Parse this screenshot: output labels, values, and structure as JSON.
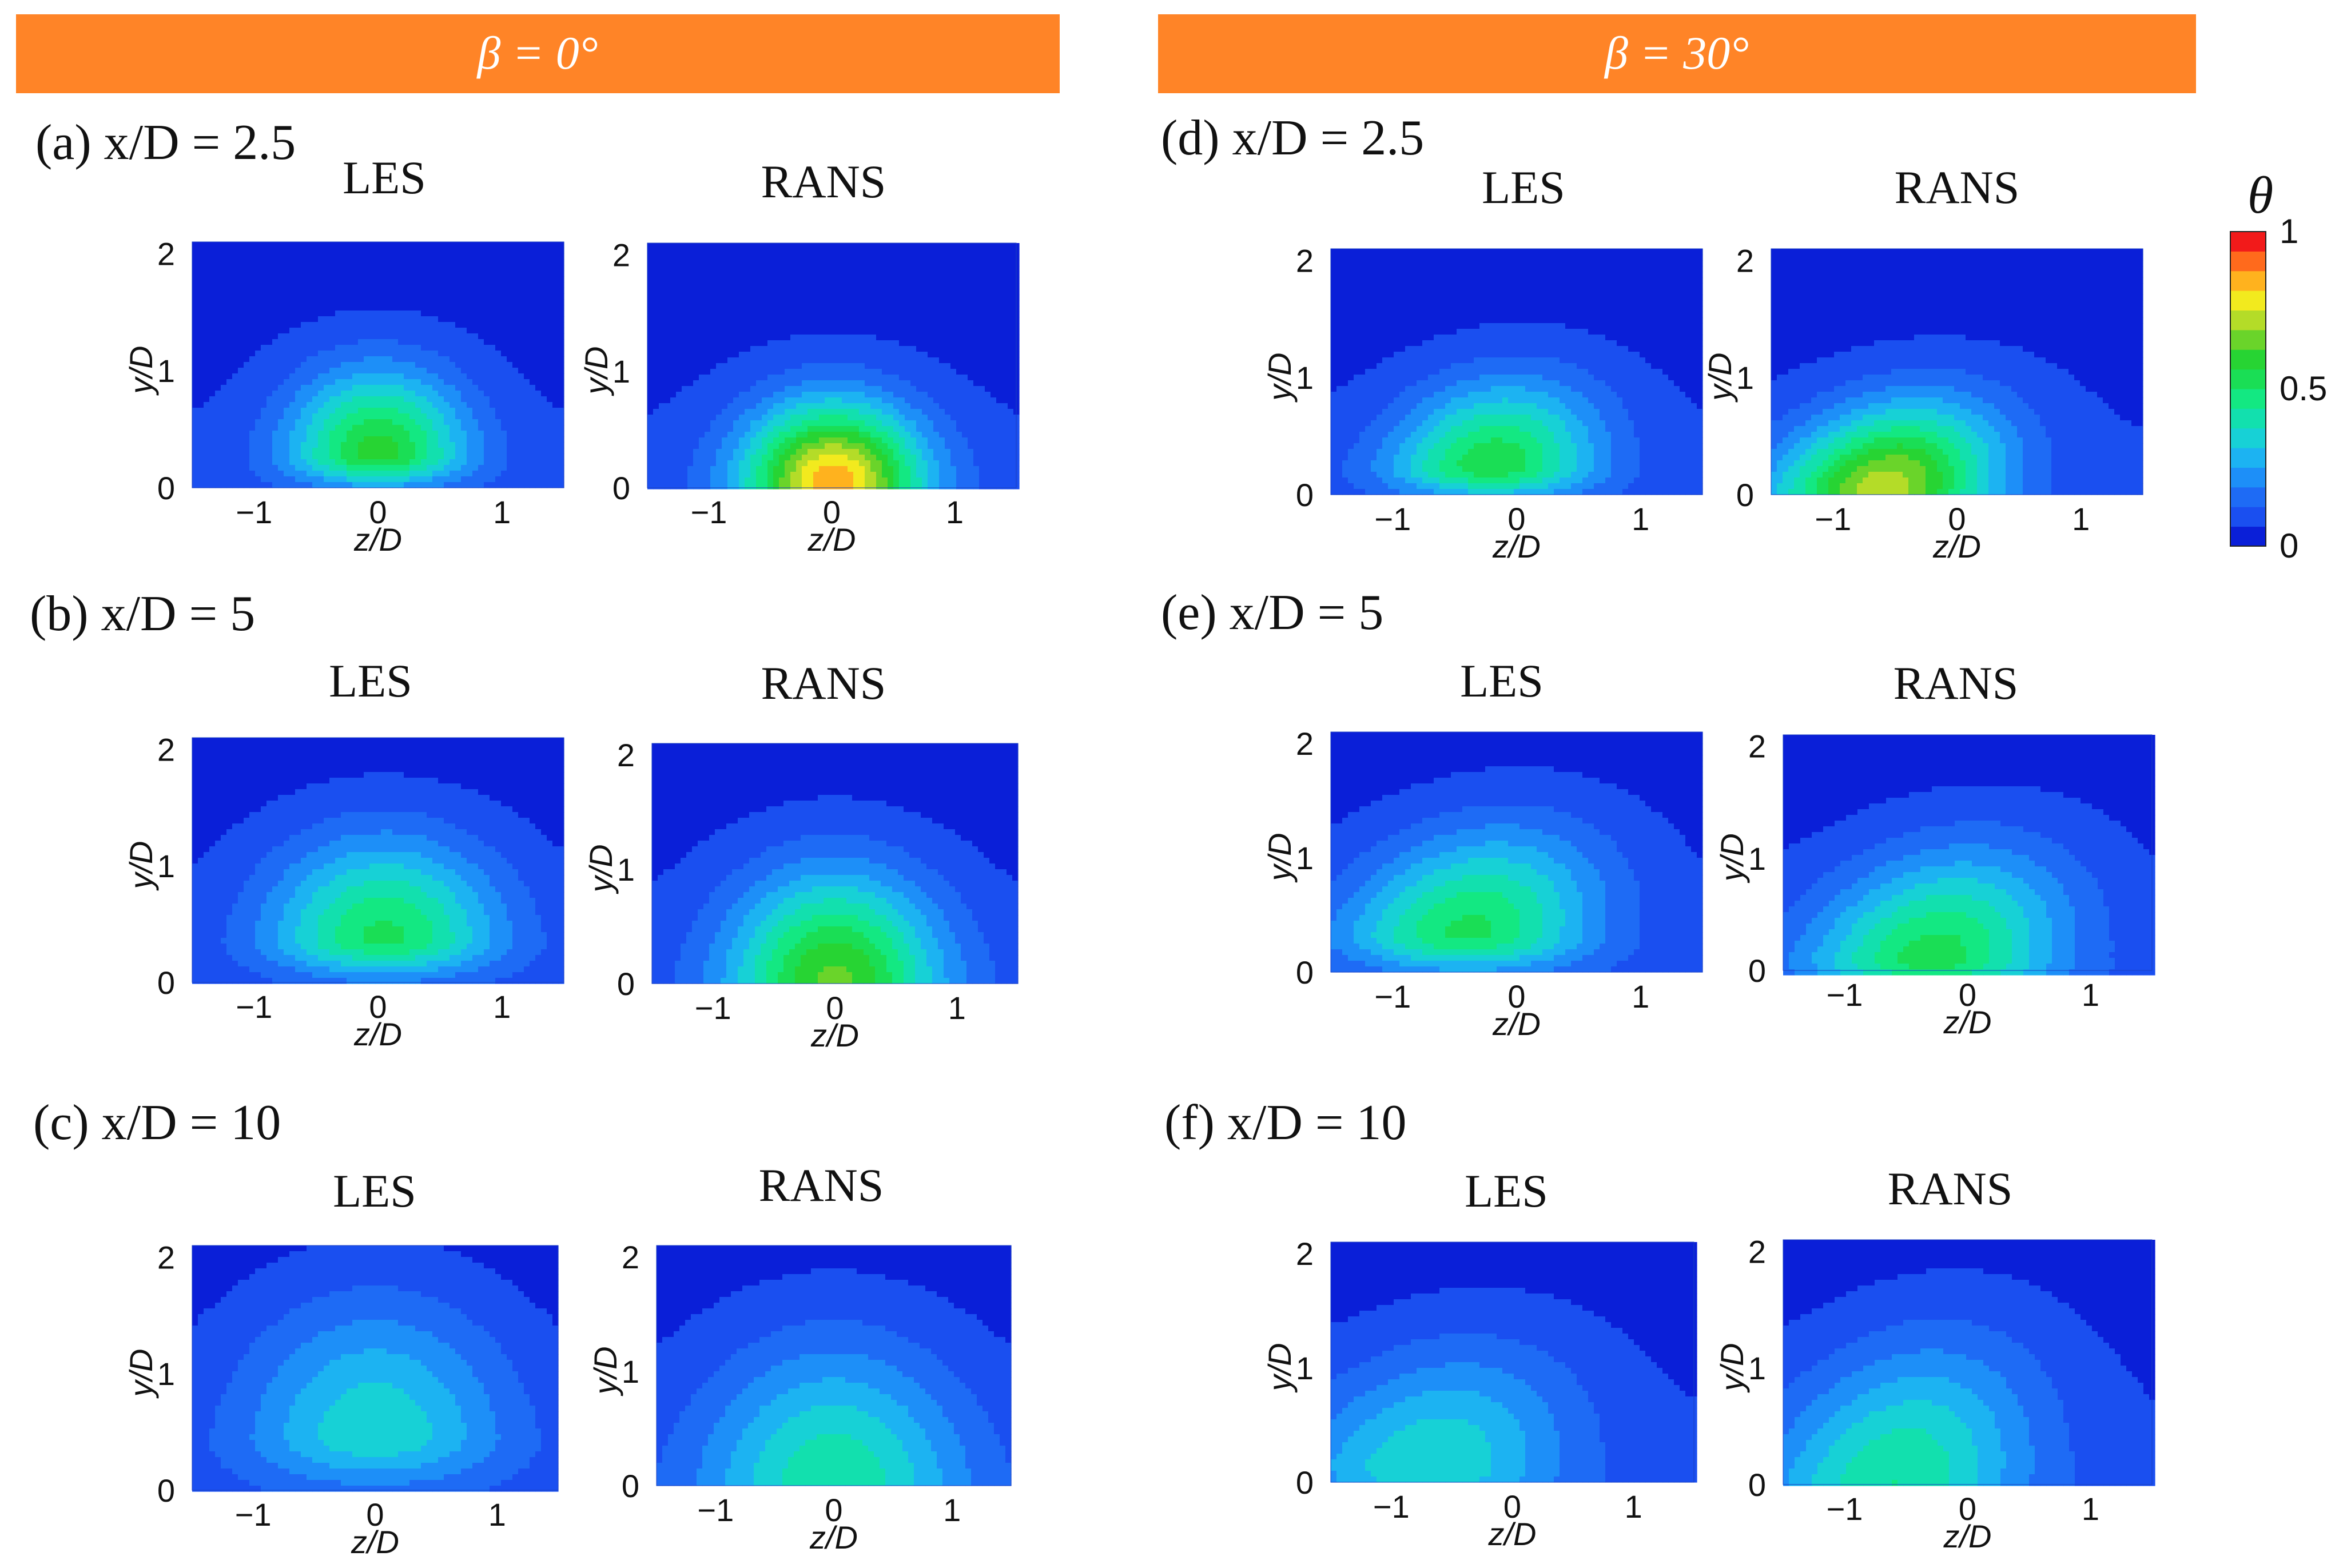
{
  "figure": {
    "banner_left": "β = 0°",
    "banner_right": "β = 30°",
    "colors": {
      "banner": "#ff8427",
      "background_blue": "#1f4ee8",
      "contour_line": "#0a0a0a"
    }
  },
  "chart_data": {
    "type": "contour",
    "variable": "θ",
    "colorbar": {
      "title": "θ",
      "ticks": [
        "1",
        "0.5",
        "0"
      ],
      "range": [
        0,
        1
      ],
      "levels": 16,
      "colors": [
        "#0a1fd8",
        "#1a4ff0",
        "#1e6bf5",
        "#1d8ff8",
        "#1cb3f2",
        "#17d1d6",
        "#12e0ae",
        "#13e882",
        "#1ade55",
        "#27d433",
        "#6ad42a",
        "#b4dc28",
        "#f2ea1e",
        "#ffb21e",
        "#ff6a1c",
        "#f21a1a"
      ]
    },
    "x_axis": {
      "label": "z/D",
      "ticks": [
        "−1",
        "0",
        "1"
      ],
      "range": [
        -1.5,
        1.5
      ]
    },
    "y_axis": {
      "label": "y/D",
      "ticks": [
        "0",
        "1",
        "2"
      ],
      "range": [
        0,
        2.1
      ]
    },
    "sections": [
      {
        "id": "a",
        "label": "(a) x/D = 2.5",
        "beta": 0,
        "xd": 2.5
      },
      {
        "id": "b",
        "label": "(b) x/D = 5",
        "beta": 0,
        "xd": 5
      },
      {
        "id": "c",
        "label": "(c) x/D = 10",
        "beta": 0,
        "xd": 10
      },
      {
        "id": "d",
        "label": "(d) x/D = 2.5",
        "beta": 30,
        "xd": 2.5
      },
      {
        "id": "e",
        "label": "(e) x/D = 5",
        "beta": 30,
        "xd": 5
      },
      {
        "id": "f",
        "label": "(f) x/D = 10",
        "beta": 30,
        "xd": 10
      }
    ],
    "panels": [
      {
        "section": "a",
        "model": "LES",
        "title": "LES",
        "center_z": 0.0,
        "center_y": 0.3,
        "peak": 0.52,
        "half_width": 1.05,
        "height": 1.05,
        "skew": 0.0
      },
      {
        "section": "a",
        "model": "RANS",
        "title": "RANS",
        "center_z": 0.0,
        "center_y": 0.05,
        "peak": 0.78,
        "half_width": 1.05,
        "height": 1.0,
        "skew": 0.0
      },
      {
        "section": "b",
        "model": "LES",
        "title": "LES",
        "center_z": 0.05,
        "center_y": 0.4,
        "peak": 0.45,
        "half_width": 1.35,
        "height": 1.25,
        "skew": 0.0
      },
      {
        "section": "b",
        "model": "RANS",
        "title": "RANS",
        "center_z": 0.0,
        "center_y": 0.05,
        "peak": 0.56,
        "half_width": 1.25,
        "height": 1.35,
        "skew": 0.0
      },
      {
        "section": "c",
        "model": "LES",
        "title": "LES",
        "center_z": 0.0,
        "center_y": 0.5,
        "peak": 0.3,
        "half_width": 1.6,
        "height": 1.7,
        "skew": 0.0
      },
      {
        "section": "c",
        "model": "RANS",
        "title": "RANS",
        "center_z": 0.0,
        "center_y": 0.05,
        "peak": 0.35,
        "half_width": 1.6,
        "height": 1.75,
        "skew": 0.0
      },
      {
        "section": "d",
        "model": "LES",
        "title": "LES",
        "center_z": -0.2,
        "center_y": 0.25,
        "peak": 0.48,
        "half_width": 1.2,
        "height": 1.05,
        "skew": 0.35
      },
      {
        "section": "d",
        "model": "RANS",
        "title": "RANS",
        "center_z": -0.6,
        "center_y": 0.05,
        "peak": 0.65,
        "half_width": 1.25,
        "height": 1.05,
        "skew": 0.6
      },
      {
        "section": "e",
        "model": "LES",
        "title": "LES",
        "center_z": -0.4,
        "center_y": 0.35,
        "peak": 0.45,
        "half_width": 1.45,
        "height": 1.3,
        "skew": 0.5
      },
      {
        "section": "e",
        "model": "RANS",
        "title": "RANS",
        "center_z": -0.3,
        "center_y": 0.15,
        "peak": 0.46,
        "half_width": 1.45,
        "height": 1.35,
        "skew": 0.5
      },
      {
        "section": "f",
        "model": "LES",
        "title": "LES",
        "center_z": -0.7,
        "center_y": 0.15,
        "peak": 0.3,
        "half_width": 1.6,
        "height": 1.5,
        "skew": 0.5
      },
      {
        "section": "f",
        "model": "RANS",
        "title": "RANS",
        "center_z": -0.6,
        "center_y": 0.05,
        "peak": 0.36,
        "half_width": 1.5,
        "height": 1.7,
        "skew": 0.45
      }
    ]
  }
}
